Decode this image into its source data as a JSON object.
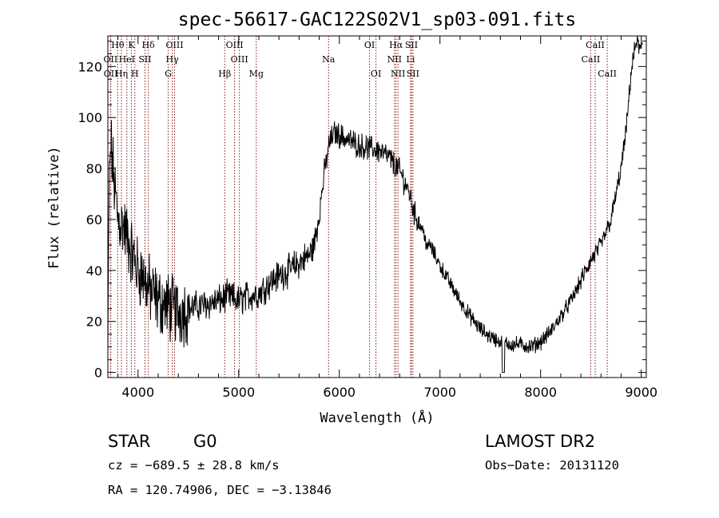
{
  "chart_data": {
    "type": "line",
    "title": "spec-56617-GAC122S02V1_sp03-091.fits",
    "xlabel": "Wavelength (Å)",
    "ylabel": "Flux (relative)",
    "xlim": [
      3700,
      9050
    ],
    "ylim": [
      -2,
      132
    ],
    "xticks": [
      4000,
      5000,
      6000,
      7000,
      8000,
      9000
    ],
    "yticks": [
      0,
      20,
      40,
      60,
      80,
      100,
      120
    ],
    "spectrum_anchors": [
      [
        3700,
        5
      ],
      [
        3712,
        70
      ],
      [
        3730,
        90
      ],
      [
        3760,
        75
      ],
      [
        3800,
        60
      ],
      [
        3850,
        58
      ],
      [
        3900,
        52
      ],
      [
        3950,
        45
      ],
      [
        4000,
        40
      ],
      [
        4050,
        38
      ],
      [
        4100,
        33
      ],
      [
        4200,
        28
      ],
      [
        4300,
        26
      ],
      [
        4400,
        24
      ],
      [
        4500,
        25
      ],
      [
        4600,
        26
      ],
      [
        4700,
        27
      ],
      [
        4800,
        28
      ],
      [
        4900,
        30
      ],
      [
        5000,
        28
      ],
      [
        5100,
        30
      ],
      [
        5200,
        31
      ],
      [
        5300,
        35
      ],
      [
        5400,
        38
      ],
      [
        5500,
        40
      ],
      [
        5600,
        43
      ],
      [
        5700,
        46
      ],
      [
        5750,
        50
      ],
      [
        5800,
        62
      ],
      [
        5850,
        78
      ],
      [
        5900,
        90
      ],
      [
        5950,
        94
      ],
      [
        6000,
        93
      ],
      [
        6100,
        91
      ],
      [
        6200,
        89
      ],
      [
        6300,
        88
      ],
      [
        6400,
        87
      ],
      [
        6500,
        84
      ],
      [
        6600,
        79
      ],
      [
        6700,
        70
      ],
      [
        6750,
        62
      ],
      [
        6800,
        58
      ],
      [
        6900,
        50
      ],
      [
        7000,
        42
      ],
      [
        7100,
        35
      ],
      [
        7200,
        28
      ],
      [
        7300,
        22
      ],
      [
        7400,
        17
      ],
      [
        7500,
        14
      ],
      [
        7600,
        12
      ],
      [
        7700,
        11
      ],
      [
        7800,
        11
      ],
      [
        7900,
        10
      ],
      [
        8000,
        12
      ],
      [
        8100,
        16
      ],
      [
        8200,
        22
      ],
      [
        8300,
        28
      ],
      [
        8400,
        36
      ],
      [
        8500,
        44
      ],
      [
        8600,
        50
      ],
      [
        8700,
        60
      ],
      [
        8800,
        80
      ],
      [
        8850,
        95
      ],
      [
        8900,
        118
      ],
      [
        8950,
        130
      ],
      [
        9000,
        126
      ],
      [
        9015,
        129
      ]
    ],
    "spectral_lines": [
      {
        "label": "Hθ",
        "x": 3798,
        "row": 0
      },
      {
        "label": "K",
        "x": 3934,
        "row": 0
      },
      {
        "label": "Hδ",
        "x": 4102,
        "row": 0
      },
      {
        "label": "OIII",
        "x": 4363,
        "row": 0
      },
      {
        "label": "OIII",
        "x": 4959,
        "row": 0
      },
      {
        "label": "OI",
        "x": 6300,
        "row": 0
      },
      {
        "label": "Hα",
        "x": 6563,
        "row": 0
      },
      {
        "label": "SII",
        "x": 6716,
        "row": 0
      },
      {
        "label": "CaII",
        "x": 8542,
        "row": 0
      },
      {
        "label": "OII",
        "x": 3727,
        "row": 1
      },
      {
        "label": "HeI",
        "x": 3889,
        "row": 1
      },
      {
        "label": "SII",
        "x": 4069,
        "row": 1
      },
      {
        "label": "Hγ",
        "x": 4340,
        "row": 1
      },
      {
        "label": "OIII",
        "x": 5007,
        "row": 1
      },
      {
        "label": "Na",
        "x": 5893,
        "row": 1
      },
      {
        "label": "NII",
        "x": 6548,
        "row": 1
      },
      {
        "label": "Li",
        "x": 6708,
        "row": 1
      },
      {
        "label": "CaII",
        "x": 8498,
        "row": 1
      },
      {
        "label": "OII",
        "x": 3729,
        "row": 2
      },
      {
        "label": "Hη",
        "x": 3835,
        "row": 2
      },
      {
        "label": "H",
        "x": 3968,
        "row": 2
      },
      {
        "label": "G",
        "x": 4300,
        "row": 2
      },
      {
        "label": "Hβ",
        "x": 4861,
        "row": 2
      },
      {
        "label": "Mg",
        "x": 5175,
        "row": 2
      },
      {
        "label": "OI",
        "x": 6364,
        "row": 2
      },
      {
        "label": "NII",
        "x": 6583,
        "row": 2
      },
      {
        "label": "SII",
        "x": 6731,
        "row": 2
      },
      {
        "label": "CaII",
        "x": 8662,
        "row": 2
      }
    ]
  },
  "info": {
    "object_class": "STAR",
    "subclass": "G0",
    "survey": "LAMOST DR2",
    "cz": "cz = −689.5 ± 28.8 km/s",
    "obs_date": "Obs−Date: 20131120",
    "coords": "RA = 120.74906, DEC =  −3.13846"
  }
}
